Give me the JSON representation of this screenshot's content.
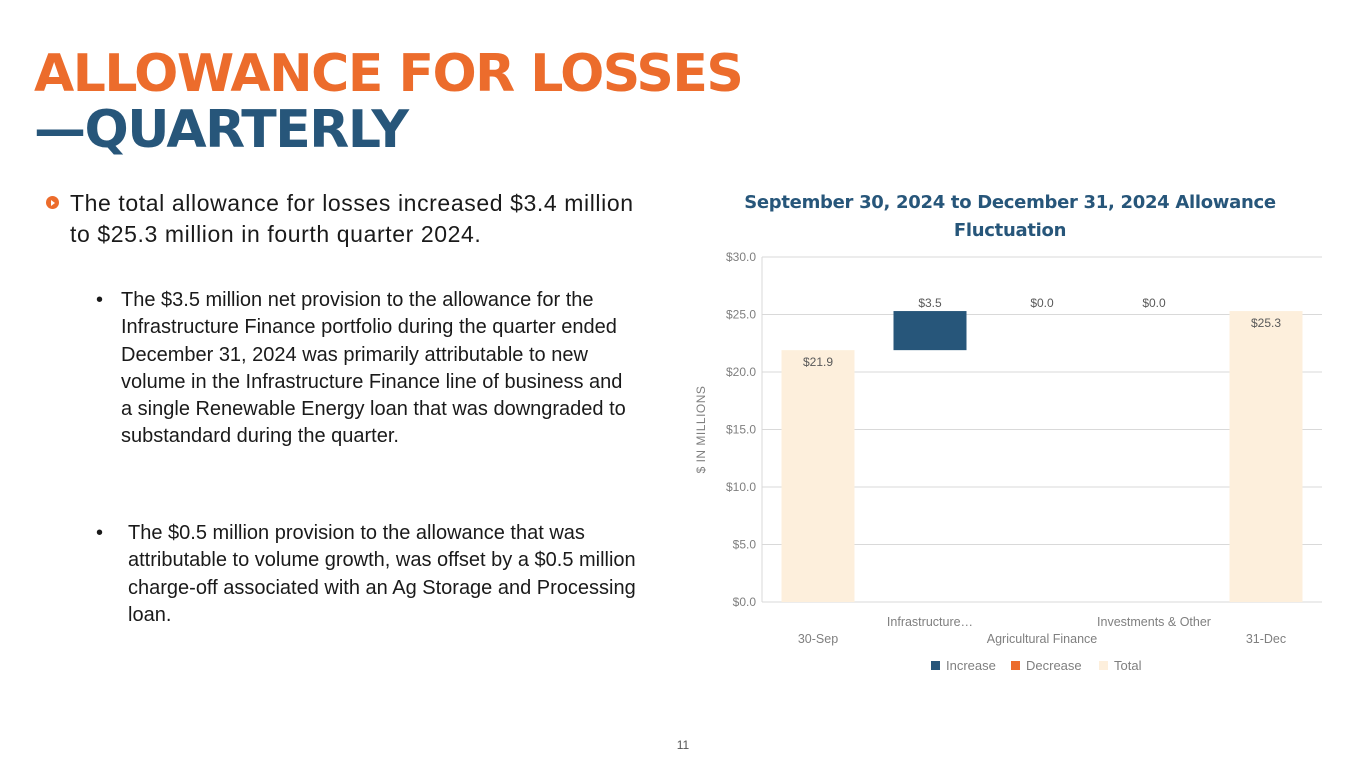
{
  "slide": {
    "title_line1": "ALLOWANCE FOR LOSSES",
    "title_line2": "—QUARTERLY",
    "lead_text": "The total allowance for losses increased $3.4 million to $25.3 million in fourth quarter 2024.",
    "bullet_char": "•",
    "bullets": [
      "The $3.5 million net provision to the allowance for the Infrastructure Finance portfolio during the quarter ended December 31, 2024 was primarily attributable to new volume in the Infrastructure Finance line of business and a single Renewable Energy loan that was downgraded to substandard during the quarter.",
      "The $0.5 million provision to the allowance that was attributable to volume growth, was offset by a $0.5 million charge-off associated with an Ag Storage and Processing loan."
    ],
    "page_number": "11"
  },
  "chart_data": {
    "type": "waterfall",
    "title": "September 30, 2024 to December 31, 2024 Allowance Fluctuation",
    "ylabel": "$ IN MILLIONS",
    "ylim": [
      0,
      30
    ],
    "yticks": [
      0,
      5,
      10,
      15,
      20,
      25,
      30
    ],
    "ytick_labels": [
      "$0.0",
      "$5.0",
      "$10.0",
      "$15.0",
      "$20.0",
      "$25.0",
      "$30.0"
    ],
    "categories": [
      "30-Sep",
      "Infrastructure…",
      "Agricultural Finance",
      "Investments & Other",
      "31-Dec"
    ],
    "bars": [
      {
        "category": "30-Sep",
        "kind": "Total",
        "start": 0,
        "end": 21.9,
        "label": "$21.9"
      },
      {
        "category": "Infrastructure…",
        "kind": "Increase",
        "start": 21.9,
        "end": 25.3,
        "label": "$3.5"
      },
      {
        "category": "Agricultural Finance",
        "kind": "Increase",
        "start": 25.3,
        "end": 25.3,
        "label": "$0.0"
      },
      {
        "category": "Investments & Other",
        "kind": "Increase",
        "start": 25.3,
        "end": 25.3,
        "label": "$0.0"
      },
      {
        "category": "31-Dec",
        "kind": "Total",
        "start": 0,
        "end": 25.3,
        "label": "$25.3"
      }
    ],
    "legend": [
      {
        "name": "Increase",
        "color": "#27567a"
      },
      {
        "name": "Decrease",
        "color": "#ec6c2c"
      },
      {
        "name": "Total",
        "color": "#fdefdc"
      }
    ],
    "legend_position": "bottom",
    "grid": true
  }
}
